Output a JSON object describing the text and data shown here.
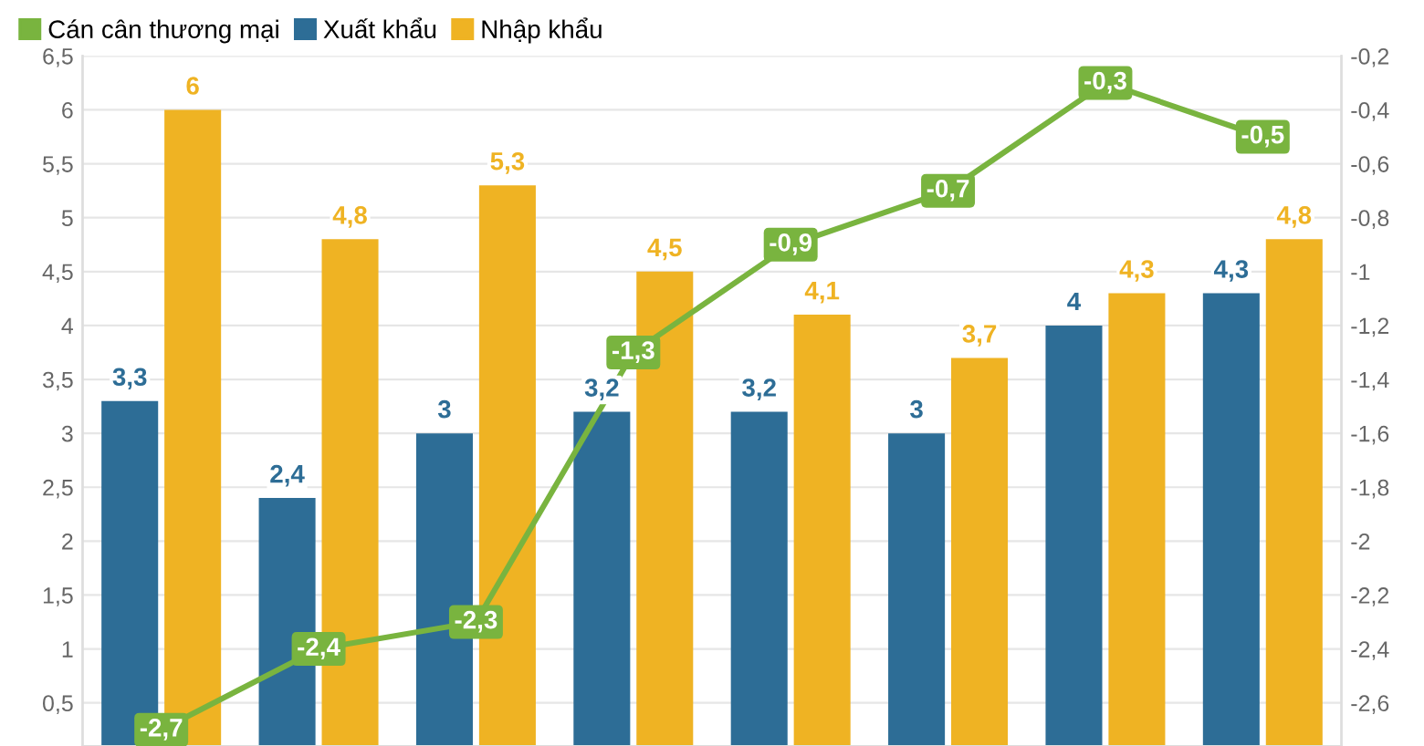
{
  "chart_data": {
    "type": "bar",
    "categories": [
      null,
      null,
      null,
      null,
      null,
      null,
      null,
      null
    ],
    "series": [
      {
        "name": "Cán cân thương mại",
        "type": "line",
        "axis": "y2",
        "color": "#79b43f",
        "marker": "square",
        "values": [
          -2.7,
          -2.4,
          -2.3,
          -1.3,
          -0.9,
          -0.7,
          -0.3,
          -0.5
        ],
        "value_labels": [
          "-2,7",
          "-2,4",
          "-2,3",
          "-1,3",
          "-0,9",
          "-0,7",
          "-0,3",
          "-0,5"
        ]
      },
      {
        "name": "Xuất khẩu",
        "color": "#2d6d96",
        "values": [
          3.3,
          2.4,
          3,
          3.2,
          3.2,
          3,
          4,
          4.3
        ],
        "value_labels": [
          "3,3",
          "2,4",
          "3",
          "3,2",
          "3,2",
          "3",
          "4",
          "4,3"
        ]
      },
      {
        "name": "Nhập khẩu",
        "color": "#efb323",
        "values": [
          6,
          4.8,
          5.3,
          4.5,
          4.1,
          3.7,
          4.3,
          4.8
        ],
        "value_labels": [
          "6",
          "4,8",
          "5,3",
          "4,5",
          "4,1",
          "3,7",
          "4,3",
          "4,8"
        ]
      }
    ],
    "ylim": [
      0.1,
      6.5
    ],
    "yticks": [
      {
        "value": 0.5,
        "label": "0,5"
      },
      1,
      {
        "value": 1.5,
        "label": "1,5"
      },
      2,
      {
        "value": 2.5,
        "label": "2,5"
      },
      3,
      {
        "value": 3.5,
        "label": "3,5"
      },
      4,
      {
        "value": 4.5,
        "label": "4,5"
      },
      5,
      {
        "value": 5.5,
        "label": "5,5"
      },
      6,
      {
        "value": 6.5,
        "label": "6,5"
      }
    ],
    "y2lim": [
      -2.76,
      -0.2
    ],
    "y2ticks": [
      {
        "value": -0.2,
        "label": "-0,2"
      },
      {
        "value": -0.4,
        "label": "-0,4"
      },
      {
        "value": -0.6,
        "label": "-0,6"
      },
      {
        "value": -0.8,
        "label": "-0,8"
      },
      {
        "value": -1,
        "label": "-1"
      },
      {
        "value": -1.2,
        "label": "-1,2"
      },
      {
        "value": -1.4,
        "label": "-1,4"
      },
      {
        "value": -1.6,
        "label": "-1,6"
      },
      {
        "value": -1.8,
        "label": "-1,8"
      },
      {
        "value": -2,
        "label": "-2"
      },
      {
        "value": -2.2,
        "label": "-2,2"
      },
      {
        "value": -2.4,
        "label": "-2,4"
      },
      {
        "value": -2.6,
        "label": "-2,6"
      }
    ],
    "grid": "y",
    "legend": "top left"
  }
}
